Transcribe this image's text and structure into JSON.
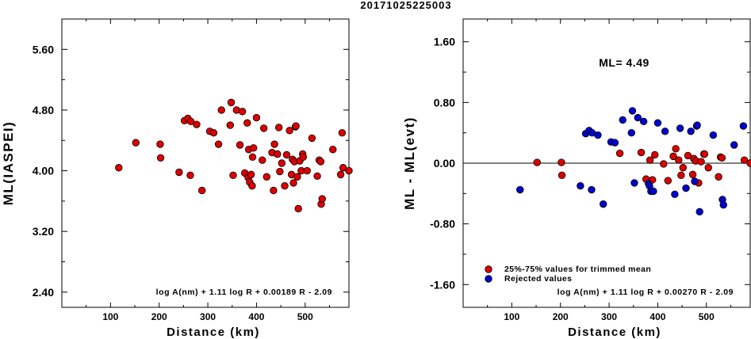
{
  "window_title": "20171025225003",
  "chart_data": [
    {
      "type": "scatter",
      "id": "left",
      "xlabel": "Distance (km)",
      "ylabel": "ML(IASPEI)",
      "xlim": [
        0,
        590
      ],
      "ylim": [
        2.2,
        6.0
      ],
      "xticks": [
        "100",
        "200",
        "300",
        "400",
        "500"
      ],
      "xtick_values": [
        100,
        200,
        300,
        400,
        500
      ],
      "yticks": [
        "2.40",
        "3.20",
        "4.00",
        "4.80",
        "5.60"
      ],
      "ytick_values": [
        2.4,
        3.2,
        4.0,
        4.8,
        5.6
      ],
      "formula": "log A(nm) + 1.11 log R + 0.00189 R - 2.09",
      "grid": false,
      "series": [
        {
          "color": "#dd0000",
          "points": [
            [
              117,
              4.04
            ],
            [
              152,
              4.37
            ],
            [
              202,
              4.35
            ],
            [
              203,
              4.17
            ],
            [
              241,
              3.98
            ],
            [
              252,
              4.66
            ],
            [
              259,
              4.69
            ],
            [
              264,
              3.94
            ],
            [
              265,
              4.65
            ],
            [
              277,
              4.61
            ],
            [
              288,
              3.74
            ],
            [
              304,
              4.52
            ],
            [
              312,
              4.5
            ],
            [
              322,
              4.35
            ],
            [
              328,
              4.8
            ],
            [
              346,
              4.6
            ],
            [
              348,
              4.9
            ],
            [
              352,
              3.94
            ],
            [
              359,
              4.8
            ],
            [
              366,
              4.34
            ],
            [
              371,
              4.78
            ],
            [
              376,
              3.97
            ],
            [
              381,
              4.63
            ],
            [
              383,
              3.91
            ],
            [
              384,
              4.28
            ],
            [
              386,
              3.85
            ],
            [
              389,
              3.95
            ],
            [
              391,
              3.8
            ],
            [
              392,
              4.18
            ],
            [
              394,
              4.3
            ],
            [
              400,
              4.7
            ],
            [
              412,
              4.14
            ],
            [
              415,
              4.56
            ],
            [
              421,
              3.92
            ],
            [
              432,
              4.24
            ],
            [
              435,
              3.74
            ],
            [
              437,
              4.35
            ],
            [
              443,
              4.22
            ],
            [
              446,
              4.57
            ],
            [
              448,
              3.99
            ],
            [
              452,
              4.1
            ],
            [
              458,
              3.8
            ],
            [
              462,
              4.21
            ],
            [
              468,
              4.53
            ],
            [
              472,
              3.95
            ],
            [
              474,
              4.15
            ],
            [
              476,
              3.84
            ],
            [
              478,
              4.12
            ],
            [
              480,
              4.58
            ],
            [
              481,
              4.59
            ],
            [
              484,
              3.92
            ],
            [
              486,
              3.5
            ],
            [
              489,
              4.13
            ],
            [
              492,
              4.0
            ],
            [
              495,
              4.22
            ],
            [
              496,
              4.18
            ],
            [
              504,
              4.0
            ],
            [
              514,
              4.43
            ],
            [
              525,
              3.93
            ],
            [
              529,
              4.14
            ],
            [
              532,
              4.12
            ],
            [
              533,
              3.56
            ],
            [
              535,
              3.63
            ],
            [
              557,
              4.28
            ],
            [
              573,
              3.95
            ],
            [
              576,
              4.5
            ],
            [
              578,
              4.04
            ],
            [
              590,
              4.0
            ]
          ]
        }
      ]
    },
    {
      "type": "scatter",
      "id": "right",
      "xlabel": "Distance (km)",
      "ylabel": "ML - ML(evt)",
      "xlim": [
        0,
        590
      ],
      "ylim": [
        -1.9,
        1.9
      ],
      "xticks": [
        "100",
        "200",
        "300",
        "400",
        "500"
      ],
      "xtick_values": [
        100,
        200,
        300,
        400,
        500
      ],
      "yticks": [
        "-1.60",
        "-0.80",
        "0.00",
        "0.80",
        "1.60"
      ],
      "ytick_values": [
        -1.6,
        -0.8,
        0.0,
        0.8,
        1.6
      ],
      "annotation": "ML= 4.49",
      "formula": "log A(nm) + 1.11 log R + 0.00270 R - 2.09",
      "zero_line": 0.0,
      "grid": false,
      "legend": {
        "placement": "bottom-left"
      },
      "series": [
        {
          "name": "25%-75% values for trimmed mean",
          "color": "#dd0000",
          "points": [
            [
              152,
              0.01
            ],
            [
              202,
              0.01
            ],
            [
              203,
              -0.16
            ],
            [
              322,
              0.13
            ],
            [
              366,
              0.14
            ],
            [
              376,
              -0.21
            ],
            [
              384,
              0.04
            ],
            [
              389,
              -0.22
            ],
            [
              394,
              0.11
            ],
            [
              412,
              -0.01
            ],
            [
              421,
              -0.23
            ],
            [
              432,
              0.09
            ],
            [
              437,
              0.19
            ],
            [
              443,
              0.04
            ],
            [
              448,
              -0.16
            ],
            [
              452,
              -0.06
            ],
            [
              462,
              0.1
            ],
            [
              472,
              -0.15
            ],
            [
              474,
              0.06
            ],
            [
              478,
              0.03
            ],
            [
              484,
              -0.26
            ],
            [
              489,
              0.02
            ],
            [
              495,
              0.12
            ],
            [
              496,
              0.12
            ],
            [
              504,
              -0.06
            ],
            [
              525,
              -0.18
            ],
            [
              529,
              0.08
            ],
            [
              532,
              0.07
            ],
            [
              578,
              0.04
            ],
            [
              590,
              0.0
            ]
          ]
        },
        {
          "name": "Rejected values",
          "color": "#0000cc",
          "points": [
            [
              117,
              -0.35
            ],
            [
              241,
              -0.3
            ],
            [
              252,
              0.39
            ],
            [
              259,
              0.43
            ],
            [
              264,
              -0.35
            ],
            [
              265,
              0.4
            ],
            [
              277,
              0.37
            ],
            [
              288,
              -0.54
            ],
            [
              304,
              0.28
            ],
            [
              312,
              0.27
            ],
            [
              328,
              0.57
            ],
            [
              346,
              0.4
            ],
            [
              348,
              0.69
            ],
            [
              352,
              -0.26
            ],
            [
              359,
              0.6
            ],
            [
              371,
              0.55
            ],
            [
              381,
              -0.27
            ],
            [
              383,
              -0.3
            ],
            [
              386,
              -0.37
            ],
            [
              391,
              -0.37
            ],
            [
              400,
              0.53
            ],
            [
              415,
              0.42
            ],
            [
              435,
              -0.41
            ],
            [
              446,
              0.46
            ],
            [
              458,
              -0.33
            ],
            [
              468,
              0.42
            ],
            [
              476,
              -0.24
            ],
            [
              480,
              0.49
            ],
            [
              481,
              0.5
            ],
            [
              486,
              -0.64
            ],
            [
              514,
              0.37
            ],
            [
              533,
              -0.48
            ],
            [
              535,
              -0.55
            ],
            [
              557,
              0.24
            ],
            [
              576,
              0.49
            ]
          ]
        }
      ]
    }
  ]
}
